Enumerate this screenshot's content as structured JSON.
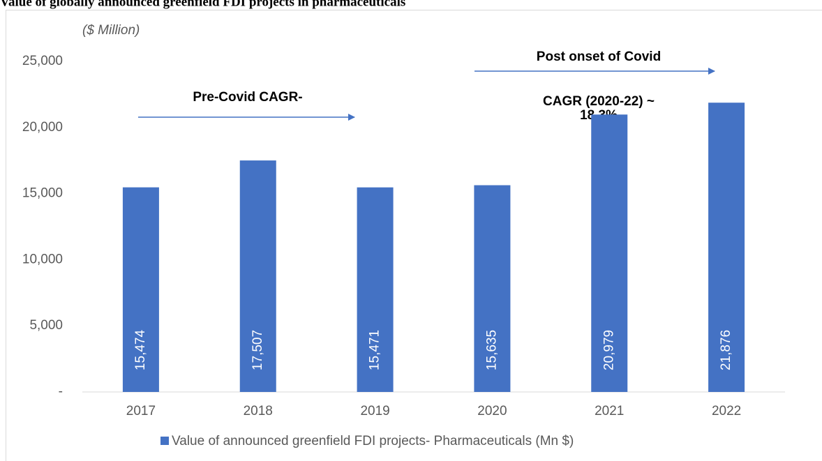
{
  "chart_data": {
    "type": "bar",
    "title": "Value of globally announced greenfield FDI projects in pharmaceuticals",
    "unit_label": "($ Million)",
    "annotations": [
      "Pre-Covid CAGR-",
      "Post onset of Covid",
      "CAGR (2020-22) ~",
      "18.3%"
    ],
    "categories": [
      "2017",
      "2018",
      "2019",
      "2020",
      "2021",
      "2022"
    ],
    "series": [
      {
        "name": "Value of announced greenfield FDI projects- Pharmaceuticals (Mn $)",
        "color": "#4472c4",
        "values": [
          15474,
          17507,
          15471,
          15635,
          20979,
          21876
        ],
        "value_labels": [
          "15,474",
          "17,507",
          "15,471",
          "15,635",
          "20,979",
          "21,876"
        ]
      }
    ],
    "ylim": [
      0,
      25000
    ],
    "yticks": [
      {
        "value": 0,
        "label": "-"
      },
      {
        "value": 5000,
        "label": "5,000"
      },
      {
        "value": 10000,
        "label": "10,000"
      },
      {
        "value": 15000,
        "label": "15,000"
      },
      {
        "value": 20000,
        "label": "20,000"
      },
      {
        "value": 25000,
        "label": "25,000"
      }
    ],
    "grid": false
  }
}
